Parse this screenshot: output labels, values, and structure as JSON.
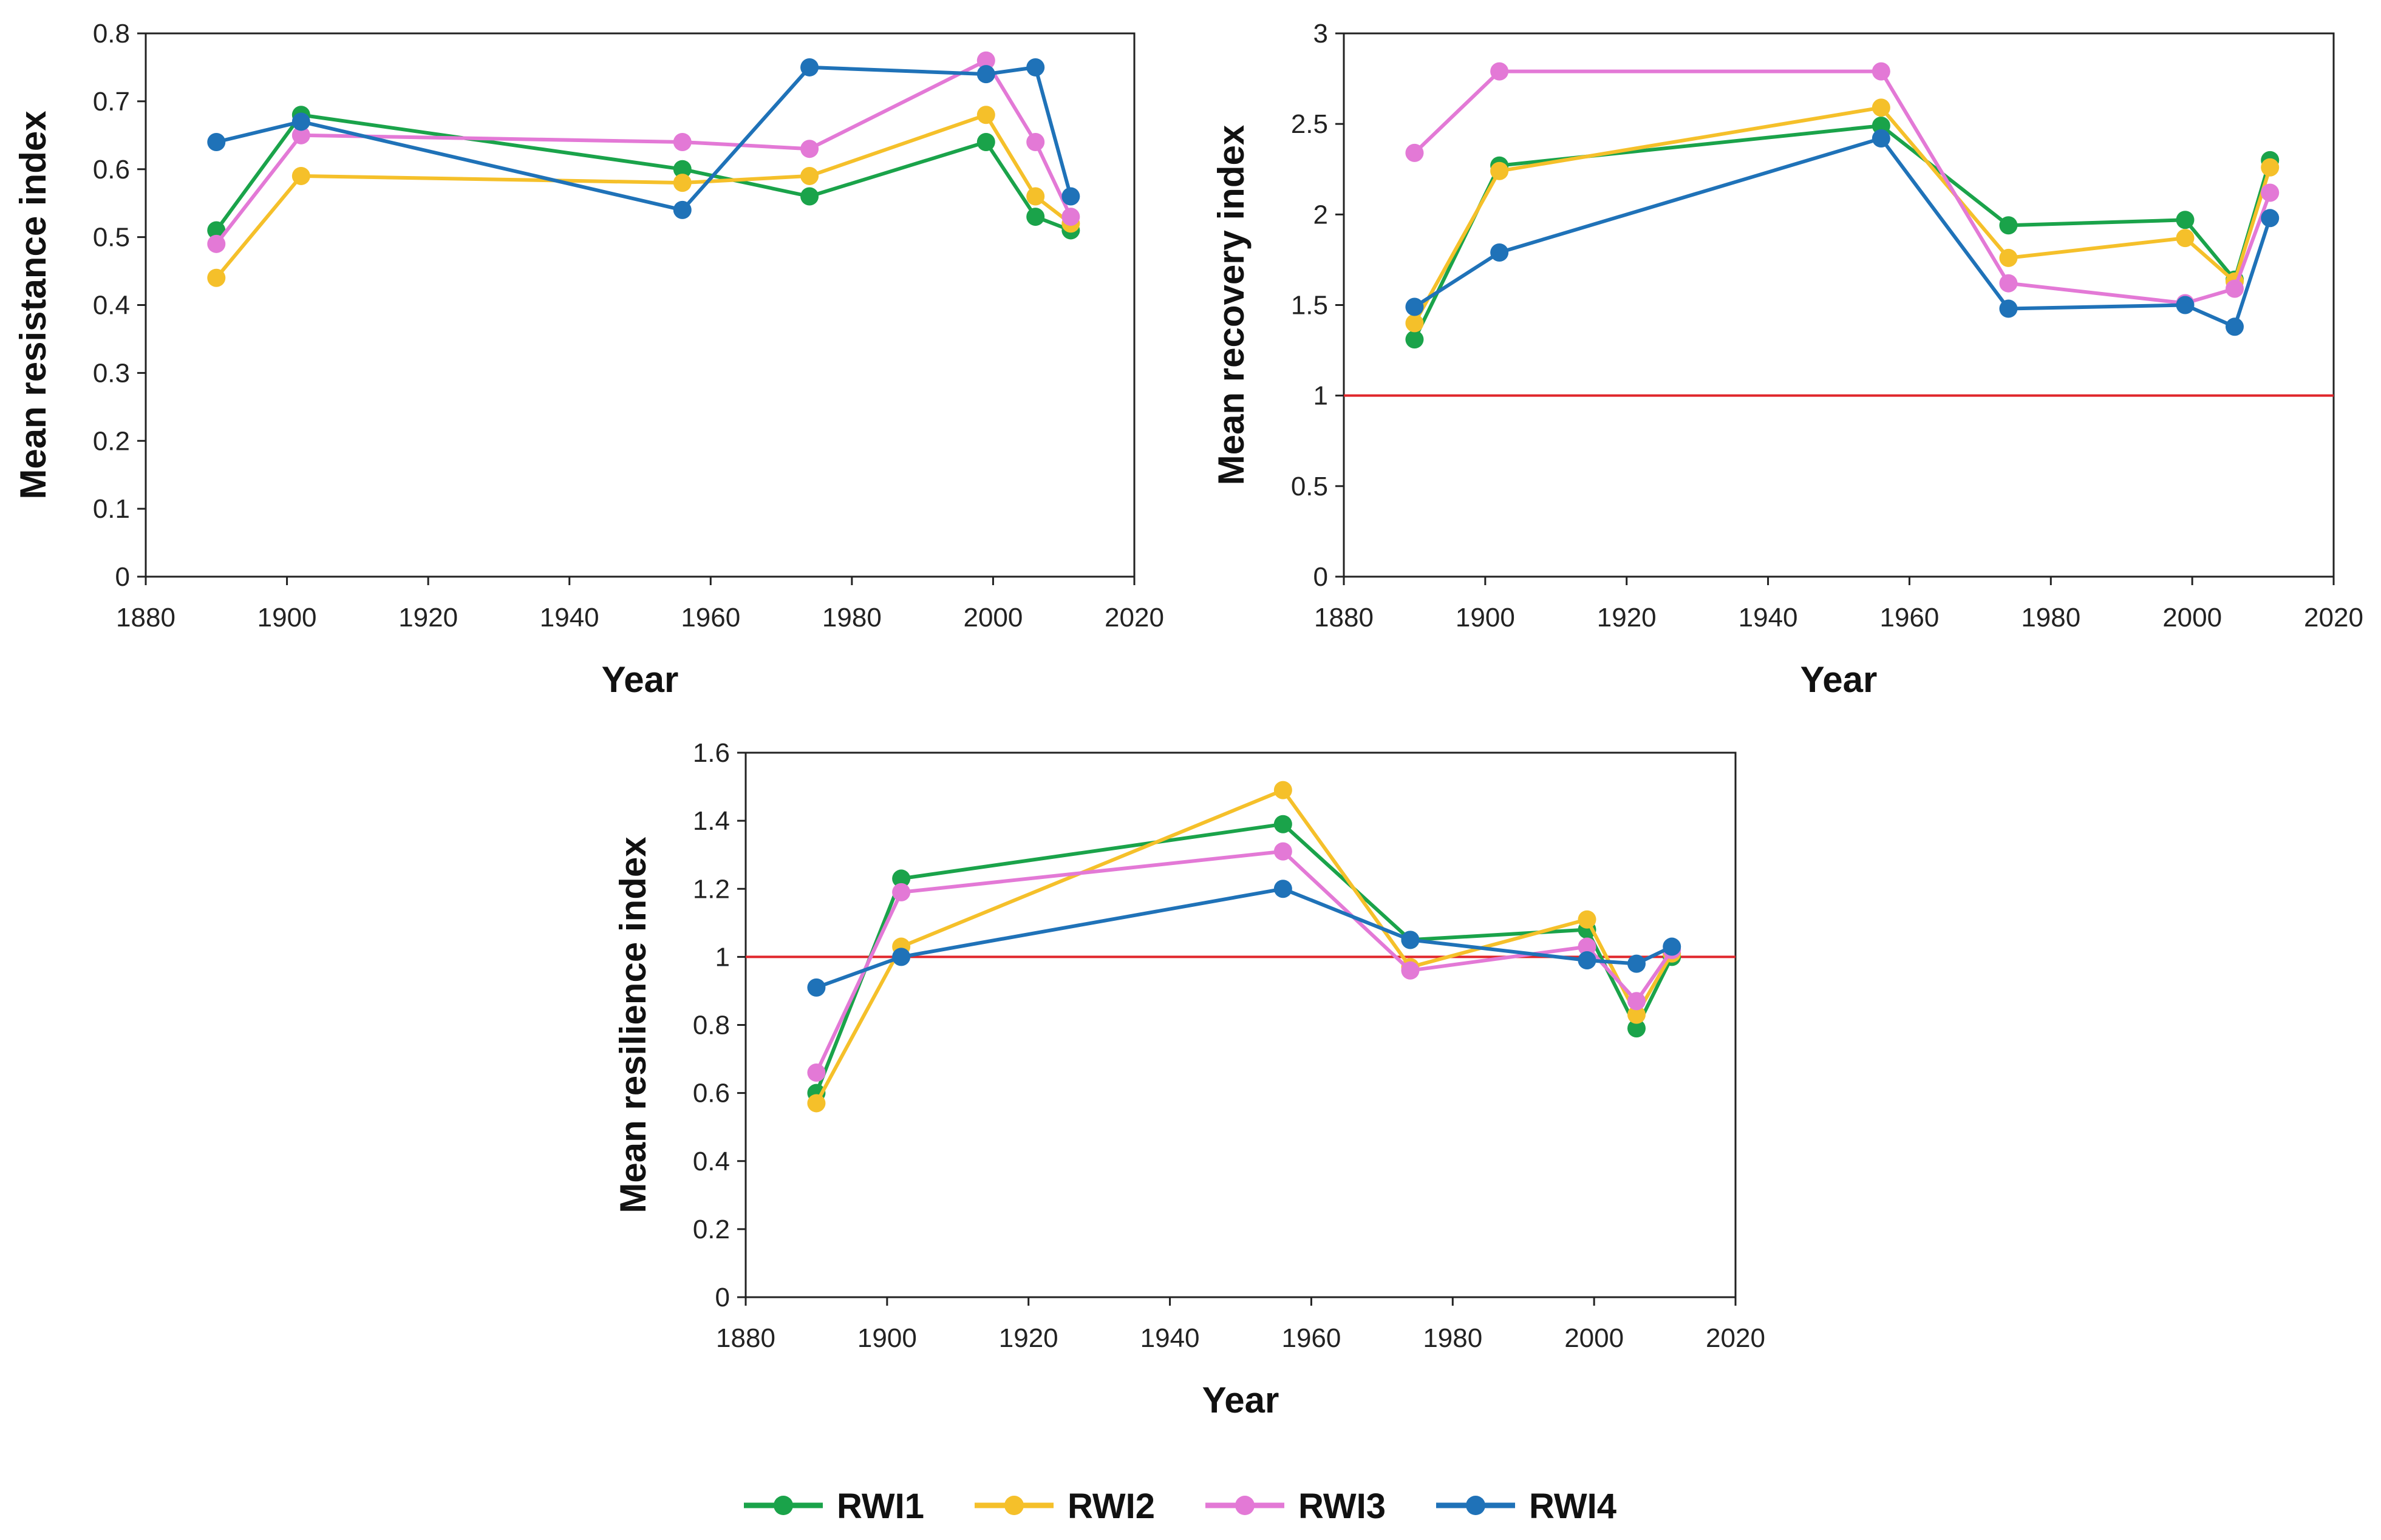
{
  "chart_data": [
    {
      "type": "line",
      "id": "resistance",
      "title": "",
      "xlabel": "Year",
      "ylabel": "Mean resistance index",
      "xlim": [
        1880,
        2020
      ],
      "ylim": [
        0,
        0.8
      ],
      "xticks": [
        1880,
        1900,
        1920,
        1940,
        1960,
        1980,
        2000,
        2020
      ],
      "yticks": [
        0,
        0.1,
        0.2,
        0.3,
        0.4,
        0.5,
        0.6,
        0.7,
        0.8
      ],
      "ytick_labels": [
        "0",
        "0.1",
        "0.2",
        "0.3",
        "0.4",
        "0.5",
        "0.6",
        "0.7",
        "0.8"
      ],
      "reference_line": null,
      "grid": false,
      "series": [
        {
          "name": "RWI1",
          "x": [
            1890,
            1902,
            1956,
            1974,
            1999,
            2006,
            2011
          ],
          "values": [
            0.51,
            0.68,
            0.6,
            0.56,
            0.64,
            0.53,
            0.51
          ]
        },
        {
          "name": "RWI2",
          "x": [
            1890,
            1902,
            1956,
            1974,
            1999,
            2006,
            2011
          ],
          "values": [
            0.44,
            0.59,
            0.58,
            0.59,
            0.68,
            0.56,
            0.52
          ]
        },
        {
          "name": "RWI3",
          "x": [
            1890,
            1902,
            1956,
            1974,
            1999,
            2006,
            2011
          ],
          "values": [
            0.49,
            0.65,
            0.64,
            0.63,
            0.76,
            0.64,
            0.53
          ]
        },
        {
          "name": "RWI4",
          "x": [
            1890,
            1902,
            1956,
            1974,
            1999,
            2006,
            2011
          ],
          "values": [
            0.64,
            0.67,
            0.54,
            0.75,
            0.74,
            0.75,
            0.56
          ]
        }
      ]
    },
    {
      "type": "line",
      "id": "recovery",
      "title": "",
      "xlabel": "Year",
      "ylabel": "Mean recovery index",
      "xlim": [
        1880,
        2020
      ],
      "ylim": [
        0,
        3
      ],
      "xticks": [
        1880,
        1900,
        1920,
        1940,
        1960,
        1980,
        2000,
        2020
      ],
      "yticks": [
        0,
        0.5,
        1,
        1.5,
        2,
        2.5,
        3
      ],
      "ytick_labels": [
        "0",
        "0.5",
        "1",
        "1.5",
        "2",
        "2.5",
        "3"
      ],
      "reference_line": 1,
      "grid": false,
      "series": [
        {
          "name": "RWI1",
          "x": [
            1890,
            1902,
            1956,
            1974,
            1999,
            2006,
            2011
          ],
          "values": [
            1.31,
            2.27,
            2.49,
            1.94,
            1.97,
            1.64,
            2.3
          ]
        },
        {
          "name": "RWI2",
          "x": [
            1890,
            1902,
            1956,
            1974,
            1999,
            2006,
            2011
          ],
          "values": [
            1.4,
            2.24,
            2.59,
            1.76,
            1.87,
            1.63,
            2.26
          ]
        },
        {
          "name": "RWI3",
          "x": [
            1890,
            1902,
            1956,
            1974,
            1999,
            2006,
            2011
          ],
          "values": [
            2.34,
            2.79,
            2.79,
            1.62,
            1.51,
            1.59,
            2.12
          ]
        },
        {
          "name": "RWI4",
          "x": [
            1890,
            1902,
            1956,
            1974,
            1999,
            2006,
            2011
          ],
          "values": [
            1.49,
            1.79,
            2.42,
            1.48,
            1.5,
            1.38,
            1.98
          ]
        }
      ]
    },
    {
      "type": "line",
      "id": "resilience",
      "title": "",
      "xlabel": "Year",
      "ylabel": "Mean resilience index",
      "xlim": [
        1880,
        2020
      ],
      "ylim": [
        0,
        1.6
      ],
      "xticks": [
        1880,
        1900,
        1920,
        1940,
        1960,
        1980,
        2000,
        2020
      ],
      "yticks": [
        0,
        0.2,
        0.4,
        0.6,
        0.8,
        1,
        1.2,
        1.4,
        1.6
      ],
      "ytick_labels": [
        "0",
        "0.2",
        "0.4",
        "0.6",
        "0.8",
        "1",
        "1.2",
        "1.4",
        "1.6"
      ],
      "reference_line": 1,
      "grid": false,
      "series": [
        {
          "name": "RWI1",
          "x": [
            1890,
            1902,
            1956,
            1974,
            1999,
            2006,
            2011
          ],
          "values": [
            0.6,
            1.23,
            1.39,
            1.05,
            1.08,
            0.79,
            1.0
          ]
        },
        {
          "name": "RWI2",
          "x": [
            1890,
            1902,
            1956,
            1974,
            1999,
            2006,
            2011
          ],
          "values": [
            0.57,
            1.03,
            1.49,
            0.97,
            1.11,
            0.83,
            1.01
          ]
        },
        {
          "name": "RWI3",
          "x": [
            1890,
            1902,
            1956,
            1974,
            1999,
            2006,
            2011
          ],
          "values": [
            0.66,
            1.19,
            1.31,
            0.96,
            1.03,
            0.87,
            1.02
          ]
        },
        {
          "name": "RWI4",
          "x": [
            1890,
            1902,
            1956,
            1974,
            1999,
            2006,
            2011
          ],
          "values": [
            0.91,
            1.0,
            1.2,
            1.05,
            0.99,
            0.98,
            1.03
          ]
        }
      ]
    }
  ],
  "legend": {
    "placement": "bottom-center",
    "items": [
      {
        "name": "RWI1",
        "color": "#1aa34a"
      },
      {
        "name": "RWI2",
        "color": "#f5c02a"
      },
      {
        "name": "RWI3",
        "color": "#e379d6"
      },
      {
        "name": "RWI4",
        "color": "#1f72b8"
      }
    ]
  },
  "colors": {
    "RWI1": "#1aa34a",
    "RWI2": "#f5c02a",
    "RWI3": "#e379d6",
    "RWI4": "#1f72b8",
    "reference_line": "#e0262b",
    "axis": "#222222"
  }
}
